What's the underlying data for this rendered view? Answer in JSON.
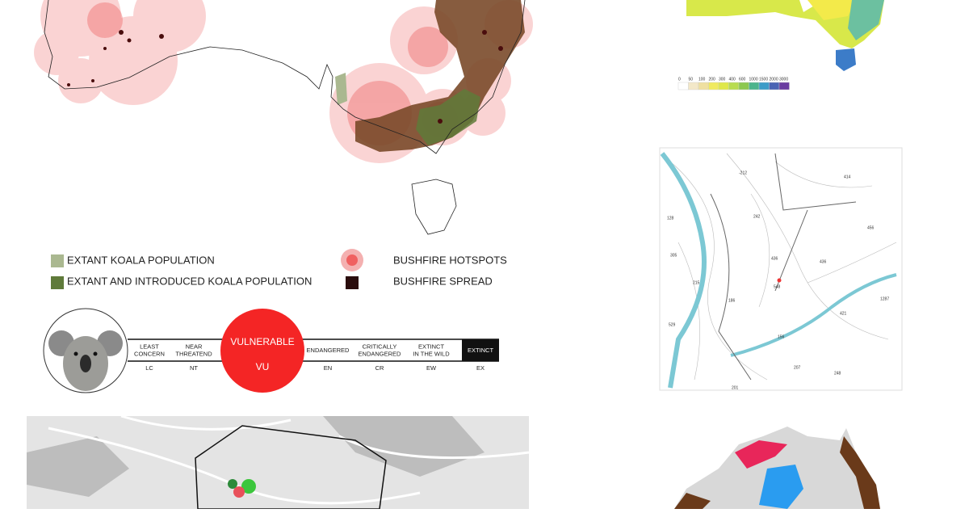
{
  "legend": {
    "items": [
      "EXTANT KOALA POPULATION",
      "EXTANT AND INTRODUCED KOALA POPULATION",
      "BUSHFIRE HOTSPOTS",
      "BUSHFIRE SPREAD"
    ]
  },
  "status_scale": {
    "steps": [
      {
        "name": [
          "LEAST",
          "CONCERN"
        ],
        "code": "LC"
      },
      {
        "name": [
          "NEAR",
          "THREATEND"
        ],
        "code": "NT"
      },
      {
        "name": [
          "VULNERABLE"
        ],
        "code": "VU"
      },
      {
        "name": [
          "ENDANGERED"
        ],
        "code": "EN"
      },
      {
        "name": [
          "CRITICALLY",
          "ENDANGERED"
        ],
        "code": "CR"
      },
      {
        "name": [
          "EXTINCT",
          "IN THE WILD"
        ],
        "code": "EW"
      },
      {
        "name": [
          "EXTINCT"
        ],
        "code": "EX"
      }
    ]
  },
  "rainfall_scale": {
    "labels": [
      "0",
      "50",
      "100",
      "200",
      "300",
      "400",
      "600",
      "1000",
      "1500",
      "2000",
      "3000"
    ]
  },
  "topo_labels": [
    "-212",
    "414",
    "128",
    "242",
    "436",
    "456",
    "305",
    "215",
    "548",
    "436",
    "186",
    "529",
    "421",
    "1287",
    "156",
    "207",
    "248",
    "201"
  ]
}
